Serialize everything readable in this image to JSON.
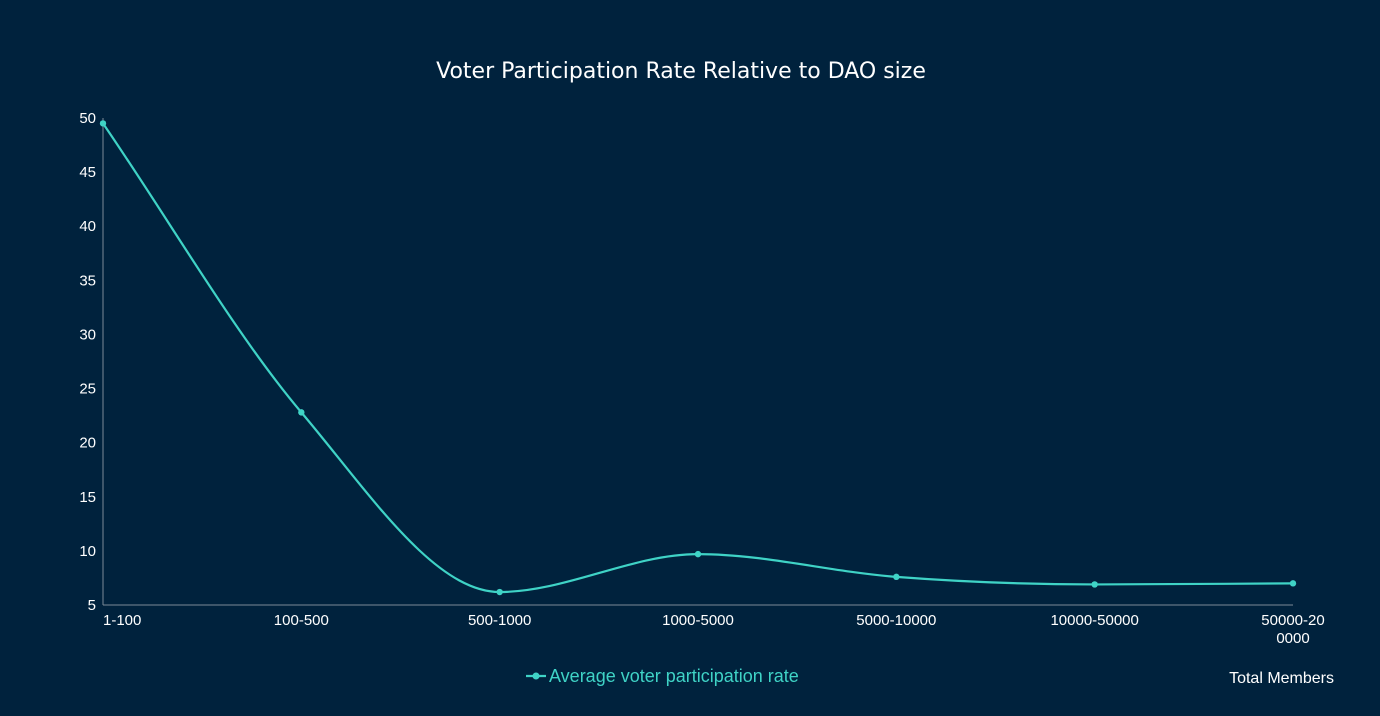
{
  "colors": {
    "background": "#00223d",
    "series": "#3fd3c6",
    "axis": "#7d8a96",
    "text": "#ffffff"
  },
  "chart_data": {
    "type": "line",
    "title": "Voter Participation Rate Relative to DAO size",
    "xlabel": "Total Members",
    "ylabel": "",
    "categories": [
      "1-100",
      "100-500",
      "500-1000",
      "1000-5000",
      "5000-10000",
      "10000-50000",
      "50000-200000"
    ],
    "category_label_lines": [
      [
        "1-100"
      ],
      [
        "100-500"
      ],
      [
        "500-1000"
      ],
      [
        "1000-5000"
      ],
      [
        "5000-10000"
      ],
      [
        "10000-50000"
      ],
      [
        "50000-20",
        "0000"
      ]
    ],
    "series": [
      {
        "name": "Average voter participation rate",
        "values": [
          49.5,
          22.8,
          6.2,
          9.7,
          7.6,
          6.9,
          7.0
        ]
      }
    ],
    "ylim": [
      5,
      50
    ],
    "yticks": [
      5,
      10,
      15,
      20,
      25,
      30,
      35,
      40,
      45,
      50
    ],
    "smooth": true,
    "grid": false,
    "legend_position": "bottom-center"
  }
}
